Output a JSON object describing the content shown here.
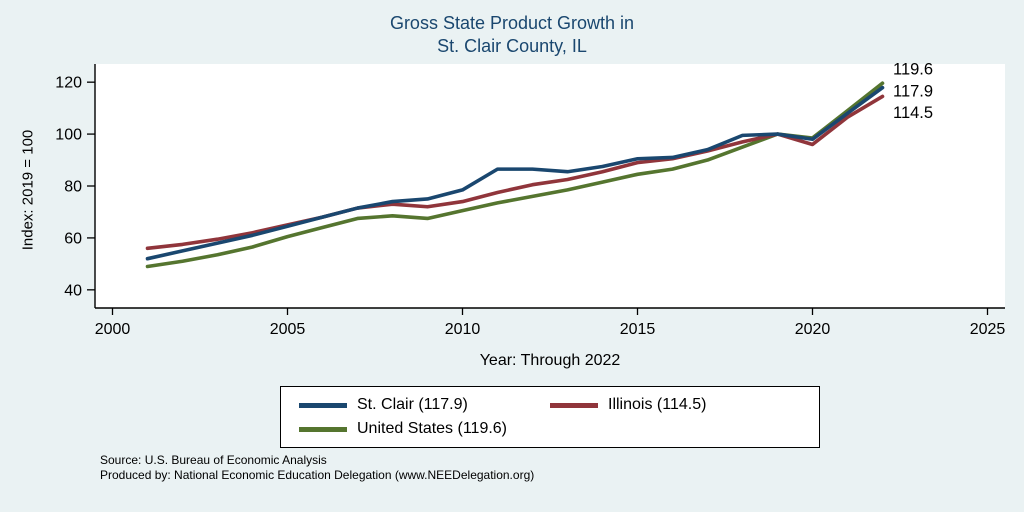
{
  "title": {
    "line1": "Gross State Product Growth in",
    "line2": "St. Clair County, IL"
  },
  "axes": {
    "y_label": "Index: 2019 = 100",
    "x_label": "Year: Through 2022"
  },
  "legend": {
    "items": [
      {
        "label": "St. Clair (117.9)",
        "color": "#1a476f"
      },
      {
        "label": "Illinois (114.5)",
        "color": "#90353b"
      },
      {
        "label": "United States (119.6)",
        "color": "#55752f"
      }
    ]
  },
  "footer": {
    "source": "Source: U.S. Bureau of Economic Analysis",
    "produced": "Produced by: National Economic Education Delegation (www.NEEDelegation.org)"
  },
  "chart_data": {
    "type": "line",
    "title": "Gross State Product Growth in St. Clair County, IL",
    "xlabel": "Year: Through 2022",
    "ylabel": "Index: 2019 = 100",
    "x": [
      2001,
      2002,
      2003,
      2004,
      2005,
      2006,
      2007,
      2008,
      2009,
      2010,
      2011,
      2012,
      2013,
      2014,
      2015,
      2016,
      2017,
      2018,
      2019,
      2020,
      2021,
      2022
    ],
    "series": [
      {
        "name": "St. Clair",
        "color": "#1a476f",
        "values": [
          52,
          55,
          58,
          61,
          64.5,
          68,
          71.5,
          74,
          75,
          78.5,
          86.5,
          86.5,
          85.5,
          87.5,
          90.5,
          91,
          94,
          99.5,
          100,
          98,
          108,
          117.9
        ]
      },
      {
        "name": "Illinois",
        "color": "#90353b",
        "values": [
          56,
          57.5,
          59.5,
          62,
          65,
          68,
          71.5,
          73,
          72,
          74,
          77.5,
          80.5,
          82.5,
          85.5,
          89,
          90.5,
          93.5,
          97,
          100,
          96,
          106.5,
          114.5
        ]
      },
      {
        "name": "United States",
        "color": "#55752f",
        "values": [
          49,
          51,
          53.5,
          56.5,
          60.5,
          64,
          67.5,
          68.5,
          67.5,
          70.5,
          73.5,
          76,
          78.5,
          81.5,
          84.5,
          86.5,
          90,
          95,
          100,
          98.5,
          109,
          119.6
        ]
      }
    ],
    "xlim": [
      1999.5,
      2025.5
    ],
    "ylim": [
      33,
      127
    ],
    "xticks": [
      2000,
      2005,
      2010,
      2015,
      2020,
      2025
    ],
    "yticks": [
      40,
      60,
      80,
      100,
      120
    ],
    "grid": false,
    "legend_position": "bottom",
    "end_labels": [
      {
        "text": "119.6",
        "x": 2022.3,
        "y": 124.8
      },
      {
        "text": "117.9",
        "x": 2022.3,
        "y": 116.5
      },
      {
        "text": "114.5",
        "x": 2022.3,
        "y": 108.2
      }
    ]
  }
}
